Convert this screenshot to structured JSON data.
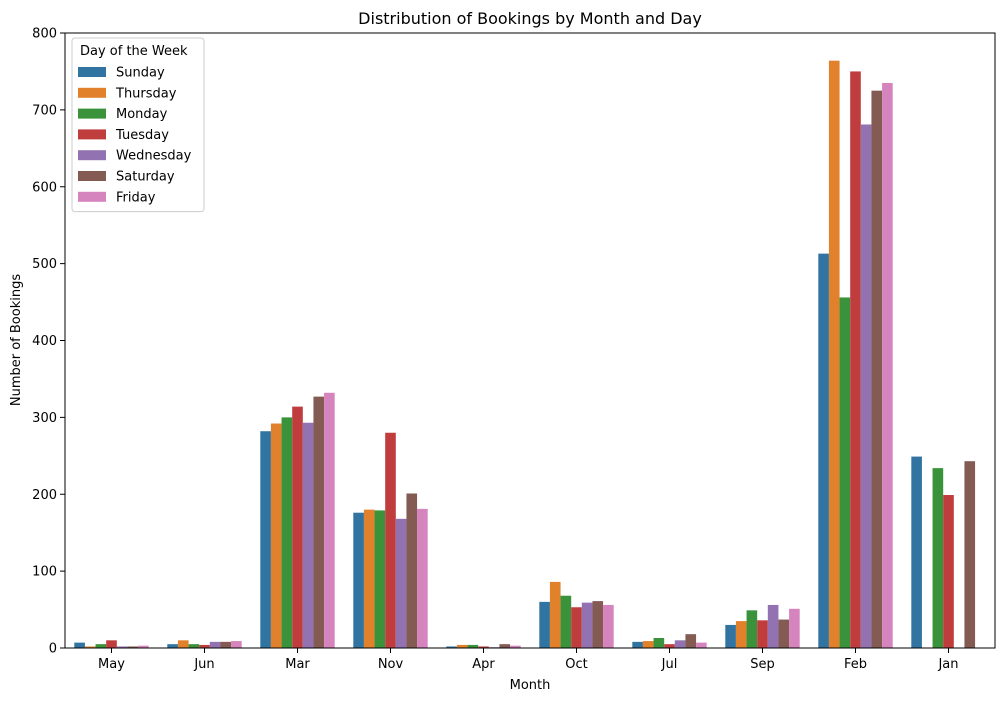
{
  "chart_data": {
    "type": "bar",
    "title": "Distribution of Bookings by Month and Day",
    "xlabel": "Month",
    "ylabel": "Number of Bookings",
    "ylim": [
      0,
      800
    ],
    "yticks": [
      0,
      100,
      200,
      300,
      400,
      500,
      600,
      700,
      800
    ],
    "grid": false,
    "legend": {
      "title": "Day of the Week",
      "placement": "top-left"
    },
    "categories": [
      "May",
      "Jun",
      "Mar",
      "Nov",
      "Apr",
      "Oct",
      "Jul",
      "Sep",
      "Feb",
      "Jan"
    ],
    "series": [
      {
        "name": "Sunday",
        "color": "#3274a1",
        "values": [
          7,
          5,
          282,
          176,
          2,
          60,
          8,
          30,
          513,
          249
        ]
      },
      {
        "name": "Thursday",
        "color": "#e1812c",
        "values": [
          2,
          10,
          292,
          180,
          4,
          86,
          9,
          35,
          764,
          0
        ]
      },
      {
        "name": "Monday",
        "color": "#3a923a",
        "values": [
          5,
          5,
          300,
          179,
          4,
          68,
          13,
          49,
          456,
          234
        ]
      },
      {
        "name": "Tuesday",
        "color": "#c03d3e",
        "values": [
          10,
          4,
          314,
          280,
          2,
          53,
          5,
          36,
          750,
          199
        ]
      },
      {
        "name": "Wednesday",
        "color": "#9372b2",
        "values": [
          2,
          8,
          293,
          168,
          1,
          59,
          10,
          56,
          681,
          0
        ]
      },
      {
        "name": "Saturday",
        "color": "#845b53",
        "values": [
          2,
          8,
          327,
          201,
          5,
          61,
          18,
          37,
          725,
          243
        ]
      },
      {
        "name": "Friday",
        "color": "#d684bd",
        "values": [
          3,
          9,
          332,
          181,
          3,
          56,
          7,
          51,
          735,
          0
        ]
      }
    ]
  }
}
